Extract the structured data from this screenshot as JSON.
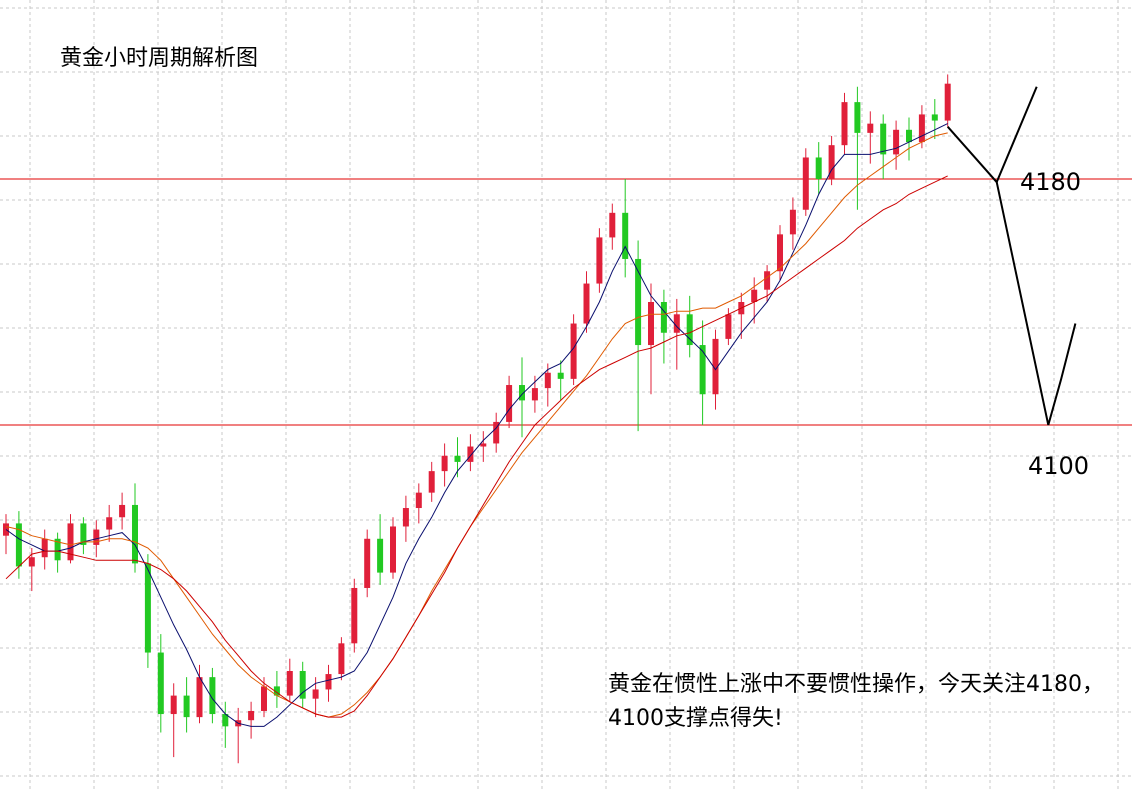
{
  "chart_data": {
    "type": "candlestick",
    "title": "黄金小时周期解析图",
    "grid": true,
    "ylim": [
      4001,
      4215
    ],
    "levels": [
      {
        "value": 4180,
        "label": "4180",
        "color": "#e00000"
      },
      {
        "value": 4100,
        "label": "4100",
        "color": "#e00000"
      }
    ],
    "annotation": "黄金在惯性上涨中不要惯性操作，今天关注4180，4100支撑点得失!",
    "candle_colors": {
      "up": "#e0203a",
      "down": "#22c922"
    },
    "moving_averages": [
      {
        "color": "#0a0f6e",
        "values": [
          4066,
          4063,
          4061,
          4059,
          4059,
          4060,
          4062,
          4063,
          4064,
          4065,
          4061,
          4053,
          4044,
          4035,
          4027,
          4018,
          4011,
          4006,
          4003,
          4002,
          4002,
          4005,
          4009,
          4013,
          4016,
          4017,
          4018,
          4020,
          4026,
          4035,
          4044,
          4055,
          4063,
          4070,
          4078,
          4085,
          4090,
          4095,
          4099,
          4105,
          4110,
          4114,
          4118,
          4120,
          4125,
          4132,
          4140,
          4150,
          4158,
          4150,
          4142,
          4137,
          4132,
          4128,
          4124,
          4118,
          4124,
          4130,
          4135,
          4140,
          4147,
          4156,
          4165,
          4175,
          4183,
          4188,
          4188,
          4188,
          4189,
          4190,
          4192,
          4194,
          4196,
          4198
        ]
      },
      {
        "color": "#e05a00",
        "values": [
          4067,
          4066,
          4064,
          4063,
          4062,
          4061,
          4062,
          4062,
          4063,
          4063,
          4062,
          4060,
          4056,
          4050,
          4044,
          4038,
          4032,
          4027,
          4022,
          4018,
          4015,
          4012,
          4010,
          4008,
          4006,
          4005,
          4006,
          4009,
          4013,
          4018,
          4024,
          4031,
          4038,
          4046,
          4053,
          4060,
          4067,
          4073,
          4079,
          4085,
          4091,
          4096,
          4101,
          4106,
          4111,
          4116,
          4122,
          4128,
          4133,
          4135,
          4136,
          4136,
          4137,
          4137,
          4138,
          4138,
          4140,
          4142,
          4145,
          4148,
          4151,
          4155,
          4159,
          4164,
          4169,
          4174,
          4178,
          4181,
          4184,
          4187,
          4190,
          4192,
          4194,
          4195
        ]
      },
      {
        "color": "#cc0000",
        "values": [
          4050,
          4054,
          4058,
          4059,
          4059,
          4058,
          4057,
          4056,
          4056,
          4056,
          4056,
          4055,
          4053,
          4050,
          4046,
          4041,
          4036,
          4030,
          4025,
          4020,
          4016,
          4013,
          4010,
          4008,
          4006,
          4005,
          4005,
          4007,
          4012,
          4018,
          4024,
          4031,
          4038,
          4045,
          4052,
          4060,
          4067,
          4074,
          4081,
          4088,
          4094,
          4100,
          4104,
          4108,
          4112,
          4115,
          4118,
          4120,
          4122,
          4124,
          4125,
          4127,
          4129,
          4130,
          4132,
          4134,
          4136,
          4138,
          4140,
          4142,
          4145,
          4148,
          4151,
          4154,
          4157,
          4160,
          4164,
          4167,
          4170,
          4172,
          4175,
          4177,
          4179,
          4181
        ]
      }
    ],
    "ohlc": [
      [
        4064,
        4071,
        4058,
        4068
      ],
      [
        4068,
        4072,
        4050,
        4054
      ],
      [
        4054,
        4060,
        4046,
        4057
      ],
      [
        4057,
        4066,
        4053,
        4063
      ],
      [
        4063,
        4065,
        4052,
        4056
      ],
      [
        4056,
        4071,
        4055,
        4068
      ],
      [
        4068,
        4070,
        4058,
        4061
      ],
      [
        4061,
        4069,
        4057,
        4066
      ],
      [
        4066,
        4074,
        4062,
        4070
      ],
      [
        4070,
        4078,
        4066,
        4074
      ],
      [
        4074,
        4081,
        4052,
        4055
      ],
      [
        4055,
        4058,
        4021,
        4026
      ],
      [
        4026,
        4032,
        4000,
        4006
      ],
      [
        4006,
        4016,
        3992,
        4012
      ],
      [
        4012,
        4018,
        4000,
        4005
      ],
      [
        4005,
        4022,
        4003,
        4018
      ],
      [
        4018,
        4021,
        4003,
        4006
      ],
      [
        4006,
        4010,
        3995,
        4002
      ],
      [
        4002,
        4008,
        3990,
        4004
      ],
      [
        4004,
        4010,
        3998,
        4007
      ],
      [
        4007,
        4018,
        4005,
        4015
      ],
      [
        4015,
        4020,
        4008,
        4012
      ],
      [
        4012,
        4024,
        4010,
        4020
      ],
      [
        4020,
        4023,
        4008,
        4011
      ],
      [
        4011,
        4018,
        4005,
        4014
      ],
      [
        4014,
        4022,
        4010,
        4019
      ],
      [
        4019,
        4031,
        4017,
        4029
      ],
      [
        4029,
        4050,
        4026,
        4047
      ],
      [
        4047,
        4066,
        4044,
        4063
      ],
      [
        4063,
        4071,
        4048,
        4052
      ],
      [
        4052,
        4070,
        4050,
        4067
      ],
      [
        4067,
        4077,
        4062,
        4073
      ],
      [
        4073,
        4081,
        4068,
        4078
      ],
      [
        4078,
        4088,
        4075,
        4085
      ],
      [
        4085,
        4094,
        4080,
        4090
      ],
      [
        4090,
        4096,
        4083,
        4088
      ],
      [
        4088,
        4097,
        4085,
        4093
      ],
      [
        4093,
        4098,
        4088,
        4094
      ],
      [
        4094,
        4104,
        4091,
        4101
      ],
      [
        4101,
        4116,
        4099,
        4113
      ],
      [
        4113,
        4122,
        4096,
        4108
      ],
      [
        4108,
        4116,
        4104,
        4112
      ],
      [
        4112,
        4120,
        4106,
        4117
      ],
      [
        4117,
        4121,
        4108,
        4115
      ],
      [
        4115,
        4136,
        4113,
        4133
      ],
      [
        4133,
        4150,
        4130,
        4146
      ],
      [
        4146,
        4164,
        4143,
        4161
      ],
      [
        4161,
        4172,
        4157,
        4169
      ],
      [
        4169,
        4180,
        4148,
        4154
      ],
      [
        4154,
        4160,
        4098,
        4126
      ],
      [
        4126,
        4146,
        4110,
        4140
      ],
      [
        4140,
        4144,
        4120,
        4130
      ],
      [
        4130,
        4141,
        4118,
        4136
      ],
      [
        4136,
        4142,
        4122,
        4126
      ],
      [
        4126,
        4134,
        4100,
        4110
      ],
      [
        4110,
        4131,
        4105,
        4128
      ],
      [
        4128,
        4138,
        4126,
        4136
      ],
      [
        4136,
        4143,
        4128,
        4140
      ],
      [
        4140,
        4148,
        4133,
        4144
      ],
      [
        4144,
        4152,
        4140,
        4150
      ],
      [
        4150,
        4165,
        4147,
        4162
      ],
      [
        4162,
        4174,
        4157,
        4170
      ],
      [
        4170,
        4190,
        4168,
        4187
      ],
      [
        4187,
        4192,
        4175,
        4180
      ],
      [
        4180,
        4194,
        4178,
        4191
      ],
      [
        4191,
        4208,
        4188,
        4205
      ],
      [
        4205,
        4210,
        4170,
        4195
      ],
      [
        4195,
        4202,
        4185,
        4198
      ],
      [
        4198,
        4201,
        4180,
        4188
      ],
      [
        4188,
        4199,
        4183,
        4196
      ],
      [
        4196,
        4200,
        4186,
        4192
      ],
      [
        4192,
        4204,
        4190,
        4201
      ],
      [
        4201,
        4206,
        4193,
        4199
      ],
      [
        4199,
        4214,
        4197,
        4211
      ]
    ],
    "forecast_path": [
      {
        "pos": 73,
        "price": 4197
      },
      {
        "pos": 76.8,
        "price": 4179
      },
      {
        "pos": 79.9,
        "price": 4210
      },
      {
        "pos": 76.8,
        "price": 4179
      },
      {
        "pos": 80.8,
        "price": 4100
      },
      {
        "pos": 81.8,
        "price": 4115
      },
      {
        "pos": 82.9,
        "price": 4133
      }
    ]
  }
}
